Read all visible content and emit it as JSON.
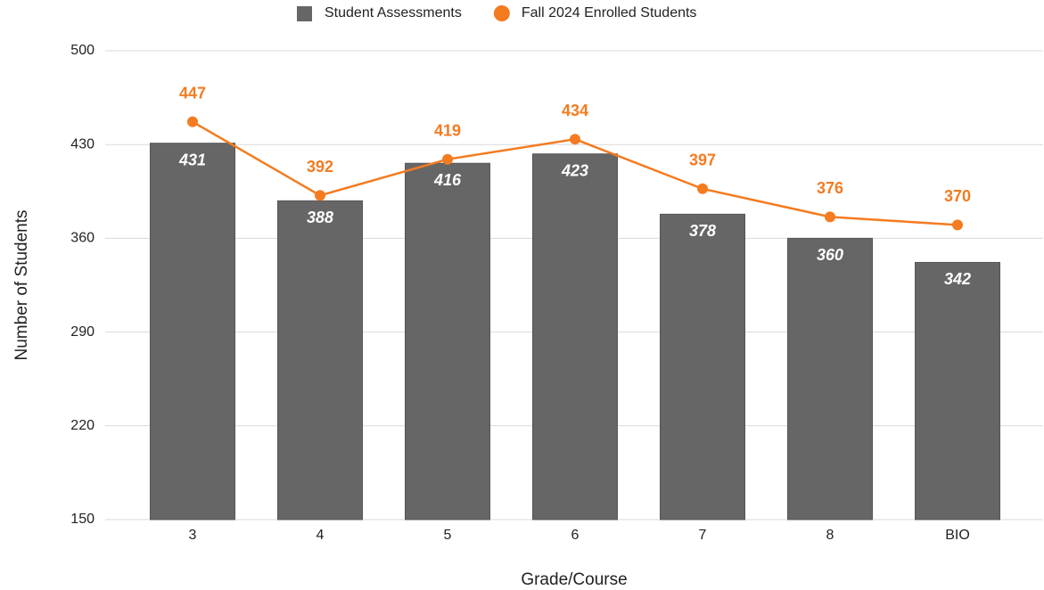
{
  "chart_data": {
    "type": "bar_line",
    "x_label": "Grade/Course",
    "y_label": "Number of Students",
    "categories": [
      "3",
      "4",
      "5",
      "6",
      "7",
      "8",
      "BIO"
    ],
    "series": [
      {
        "name": "Student Assessments",
        "type": "bar",
        "color": "#666666",
        "values": [
          431,
          388,
          416,
          423,
          378,
          360,
          342
        ]
      },
      {
        "name": "Fall 2024 Enrolled Students",
        "type": "line",
        "color": "#f47b20",
        "values": [
          447,
          392,
          419,
          434,
          397,
          376,
          370
        ]
      }
    ],
    "ylim": [
      150,
      500
    ],
    "yticks": [
      150,
      220,
      290,
      360,
      430,
      500
    ],
    "grid": true,
    "legend": "top"
  }
}
